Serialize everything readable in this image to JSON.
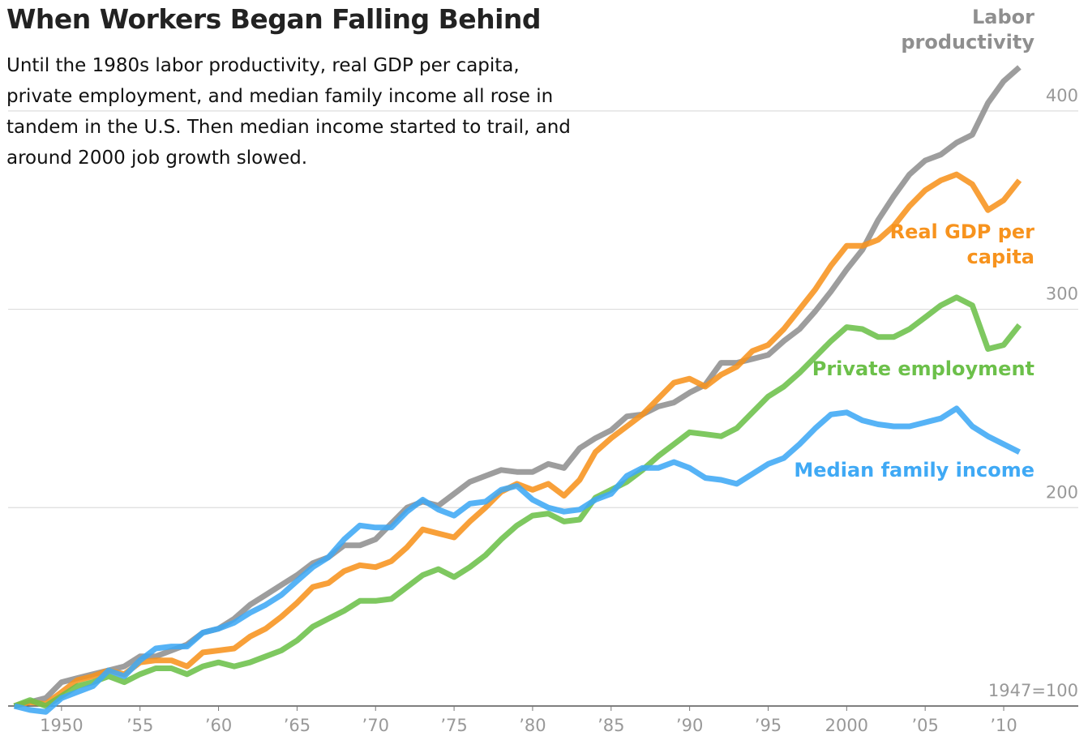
{
  "chart_data": {
    "type": "line",
    "title": "When Workers Began Falling Behind",
    "subtitle": "Until the 1980s labor productivity, real GDP per capita, private employment, and median family income all rose in tandem in the U.S. Then median income started to trail, and around 2000 job growth slowed.",
    "x": [
      1947,
      1948,
      1949,
      1950,
      1951,
      1952,
      1953,
      1954,
      1955,
      1956,
      1957,
      1958,
      1959,
      1960,
      1961,
      1962,
      1963,
      1964,
      1965,
      1966,
      1967,
      1968,
      1969,
      1970,
      1971,
      1972,
      1973,
      1974,
      1975,
      1976,
      1977,
      1978,
      1979,
      1980,
      1981,
      1982,
      1983,
      1984,
      1985,
      1986,
      1987,
      1988,
      1989,
      1990,
      1991,
      1992,
      1993,
      1994,
      1995,
      1996,
      1997,
      1998,
      1999,
      2000,
      2001,
      2002,
      2003,
      2004,
      2005,
      2006,
      2007,
      2008,
      2009,
      2010,
      2011
    ],
    "series": [
      {
        "name": "Labor productivity",
        "color": "#8f8f8f",
        "values": [
          100,
          102,
          104,
          112,
          114,
          116,
          118,
          120,
          125,
          125,
          128,
          131,
          137,
          139,
          144,
          151,
          156,
          161,
          166,
          172,
          175,
          181,
          181,
          184,
          192,
          200,
          203,
          201,
          207,
          213,
          216,
          219,
          218,
          218,
          222,
          220,
          230,
          235,
          239,
          246,
          247,
          251,
          253,
          258,
          262,
          273,
          273,
          275,
          277,
          284,
          290,
          299,
          309,
          320,
          330,
          345,
          357,
          368,
          375,
          378,
          384,
          388,
          404,
          415,
          422
        ]
      },
      {
        "name": "Real GDP per capita",
        "color": "#f7931e",
        "values": [
          100,
          102,
          101,
          107,
          113,
          115,
          118,
          116,
          122,
          123,
          123,
          120,
          127,
          128,
          129,
          135,
          139,
          145,
          152,
          160,
          162,
          168,
          171,
          170,
          173,
          180,
          189,
          187,
          185,
          193,
          200,
          208,
          212,
          209,
          212,
          206,
          214,
          228,
          235,
          241,
          247,
          255,
          263,
          265,
          261,
          267,
          271,
          279,
          282,
          290,
          300,
          310,
          322,
          332,
          332,
          335,
          342,
          352,
          360,
          365,
          368,
          363,
          350,
          355,
          365
        ]
      },
      {
        "name": "Private employment",
        "color": "#6cc04a",
        "values": [
          100,
          103,
          100,
          105,
          110,
          112,
          115,
          112,
          116,
          119,
          119,
          116,
          120,
          122,
          120,
          122,
          125,
          128,
          133,
          140,
          144,
          148,
          153,
          153,
          154,
          160,
          166,
          169,
          165,
          170,
          176,
          184,
          191,
          196,
          197,
          193,
          194,
          205,
          209,
          213,
          219,
          226,
          232,
          238,
          237,
          236,
          240,
          248,
          256,
          261,
          268,
          276,
          284,
          291,
          290,
          286,
          286,
          290,
          296,
          302,
          306,
          302,
          280,
          282,
          292
        ]
      },
      {
        "name": "Median family income",
        "color": "#3fa9f5",
        "values": [
          100,
          98,
          97,
          104,
          107,
          110,
          118,
          115,
          123,
          129,
          130,
          130,
          137,
          139,
          142,
          147,
          151,
          156,
          163,
          170,
          175,
          184,
          191,
          190,
          190,
          198,
          204,
          199,
          196,
          202,
          203,
          209,
          211,
          204,
          200,
          198,
          199,
          204,
          207,
          216,
          220,
          220,
          223,
          220,
          215,
          214,
          212,
          217,
          222,
          225,
          232,
          240,
          247,
          248,
          244,
          242,
          241,
          241,
          243,
          245,
          250,
          241,
          236,
          232,
          228
        ]
      }
    ],
    "xlim": [
      1946.6,
      2013.2
    ],
    "xticks": [
      {
        "value": 1950,
        "label": "1950"
      },
      {
        "value": 1955,
        "label": "’55"
      },
      {
        "value": 1960,
        "label": "’60"
      },
      {
        "value": 1965,
        "label": "’65"
      },
      {
        "value": 1970,
        "label": "’70"
      },
      {
        "value": 1975,
        "label": "’75"
      },
      {
        "value": 1980,
        "label": "’80"
      },
      {
        "value": 1985,
        "label": "’85"
      },
      {
        "value": 1990,
        "label": "’90"
      },
      {
        "value": 1995,
        "label": "’95"
      },
      {
        "value": 2000,
        "label": "2000"
      },
      {
        "value": 2005,
        "label": "’05"
      },
      {
        "value": 2010,
        "label": "’10"
      }
    ],
    "ylim": [
      100,
      450
    ],
    "yticks": [
      {
        "value": 100,
        "label": "1947=100"
      },
      200,
      300,
      400
    ],
    "grid": true
  }
}
